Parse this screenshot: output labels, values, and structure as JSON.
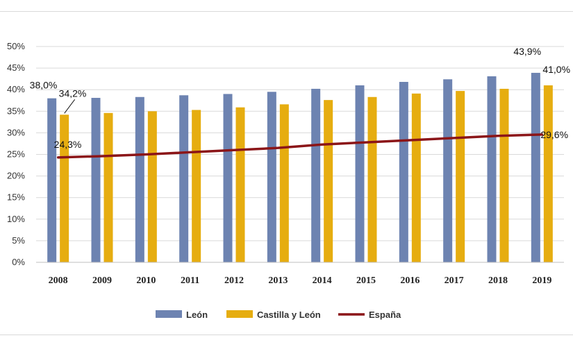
{
  "chart_data": {
    "type": "bar",
    "title": "",
    "xlabel": "",
    "ylabel": "",
    "ylim": [
      0,
      50
    ],
    "y_tick_labels": [
      "0%",
      "5%",
      "10%",
      "15%",
      "20%",
      "25%",
      "30%",
      "35%",
      "40%",
      "45%",
      "50%"
    ],
    "y_tick_values": [
      0,
      5,
      10,
      15,
      20,
      25,
      30,
      35,
      40,
      45,
      50
    ],
    "grid": true,
    "legend_position": "bottom",
    "categories": [
      "2008",
      "2009",
      "2010",
      "2011",
      "2012",
      "2013",
      "2014",
      "2015",
      "2016",
      "2017",
      "2018",
      "2019"
    ],
    "series": [
      {
        "name": "León",
        "type": "bar",
        "color": "#6d83b1",
        "values": [
          38.0,
          38.1,
          38.3,
          38.7,
          39.0,
          39.5,
          40.2,
          41.0,
          41.8,
          42.4,
          43.1,
          43.9
        ]
      },
      {
        "name": "Castilla y León",
        "type": "bar",
        "color": "#e6ad10",
        "values": [
          34.2,
          34.6,
          35.0,
          35.3,
          35.9,
          36.6,
          37.6,
          38.3,
          39.1,
          39.7,
          40.2,
          41.0
        ]
      },
      {
        "name": "España",
        "type": "line",
        "color": "#8b1518",
        "values": [
          24.3,
          24.6,
          25.0,
          25.5,
          26.0,
          26.5,
          27.3,
          27.8,
          28.3,
          28.8,
          29.3,
          29.6
        ]
      }
    ],
    "annotations": [
      {
        "text": "38,0%",
        "series": 0,
        "index": 0
      },
      {
        "text": "34,2%",
        "series": 1,
        "index": 0
      },
      {
        "text": "24,3%",
        "series": 2,
        "index": 0
      },
      {
        "text": "43,9%",
        "series": 0,
        "index": 11
      },
      {
        "text": "41,0%",
        "series": 1,
        "index": 11
      },
      {
        "text": "29,6%",
        "series": 2,
        "index": 11
      }
    ]
  }
}
